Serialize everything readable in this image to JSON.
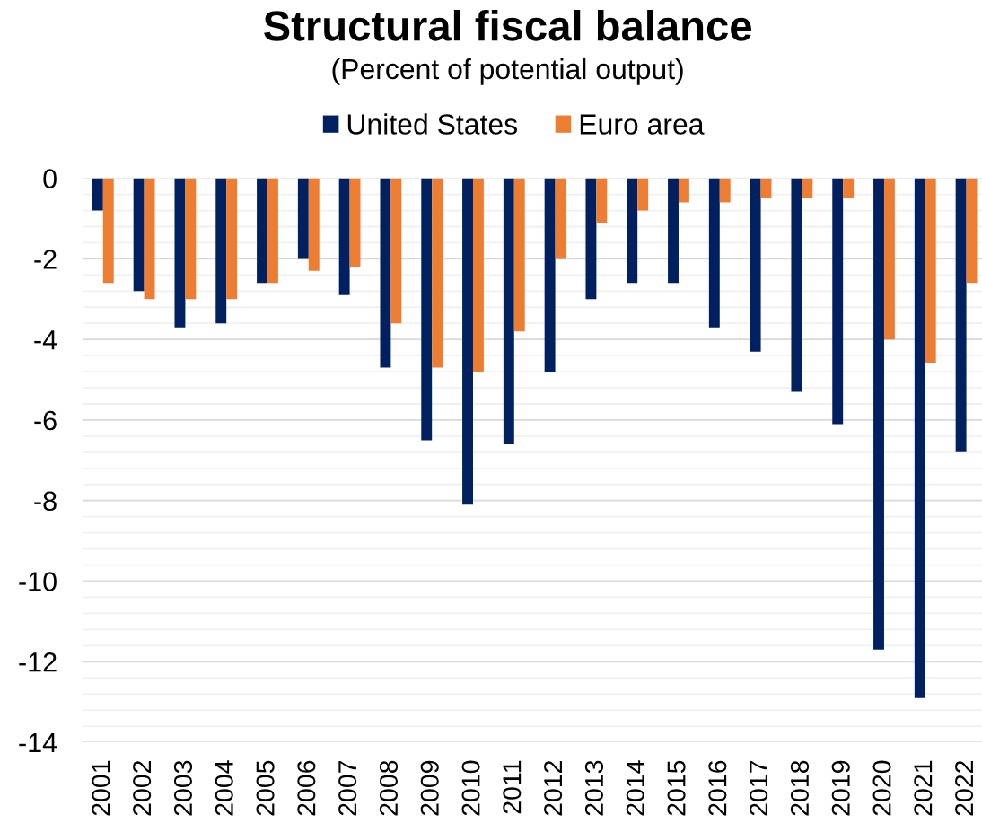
{
  "chart_data": {
    "type": "bar",
    "title": "Structural fiscal balance",
    "subtitle": "(Percent of potential output)",
    "categories": [
      "2001",
      "2002",
      "2003",
      "2004",
      "2005",
      "2006",
      "2007",
      "2008",
      "2009",
      "2010",
      "2011",
      "2012",
      "2013",
      "2014",
      "2015",
      "2016",
      "2017",
      "2018",
      "2019",
      "2020",
      "2021",
      "2022"
    ],
    "series": [
      {
        "name": "United States",
        "color": "#002060",
        "values": [
          -0.8,
          -2.8,
          -3.7,
          -3.6,
          -2.6,
          -2.0,
          -2.9,
          -4.7,
          -6.5,
          -8.1,
          -6.6,
          -4.8,
          -3.0,
          -2.6,
          -2.6,
          -3.7,
          -4.3,
          -5.3,
          -6.1,
          -11.7,
          -12.9,
          -6.8
        ]
      },
      {
        "name": "Euro area",
        "color": "#ed7d31",
        "values": [
          -2.6,
          -3.0,
          -3.0,
          -3.0,
          -2.6,
          -2.3,
          -2.2,
          -3.6,
          -4.7,
          -4.8,
          -3.8,
          -2.0,
          -1.1,
          -0.8,
          -0.6,
          -0.6,
          -0.5,
          -0.5,
          -0.5,
          -4.0,
          -4.6,
          -2.6
        ]
      }
    ],
    "ylim": [
      -14,
      0
    ],
    "yticks": [
      0,
      {
        "value": -0.4,
        "label": null
      },
      {
        "value": -0.8,
        "label": null
      },
      {
        "value": -1.2,
        "label": null
      },
      {
        "value": -1.6,
        "label": null
      },
      -2,
      {
        "value": -2.4,
        "label": null
      },
      {
        "value": -2.8,
        "label": null
      },
      {
        "value": -3.2,
        "label": null
      },
      {
        "value": -3.6,
        "label": null
      },
      -4,
      {
        "value": -4.4,
        "label": null
      },
      {
        "value": -4.8,
        "label": null
      },
      {
        "value": -5.2,
        "label": null
      },
      {
        "value": -5.6,
        "label": null
      },
      -6,
      {
        "value": -6.4,
        "label": null
      },
      {
        "value": -6.8,
        "label": null
      },
      {
        "value": -7.2,
        "label": null
      },
      {
        "value": -7.6,
        "label": null
      },
      -8,
      {
        "value": -8.4,
        "label": null
      },
      {
        "value": -8.8,
        "label": null
      },
      {
        "value": -9.2,
        "label": null
      },
      {
        "value": -9.6,
        "label": null
      },
      -10,
      {
        "value": -10.4,
        "label": null
      },
      {
        "value": -10.8,
        "label": null
      },
      {
        "value": -11.2,
        "label": null
      },
      {
        "value": -11.6,
        "label": null
      },
      -12,
      {
        "value": -12.4,
        "label": null
      },
      {
        "value": -12.8,
        "label": null
      },
      {
        "value": -13.2,
        "label": null
      },
      {
        "value": -13.6,
        "label": null
      },
      -14
    ],
    "grid": "y",
    "legend": "top"
  }
}
